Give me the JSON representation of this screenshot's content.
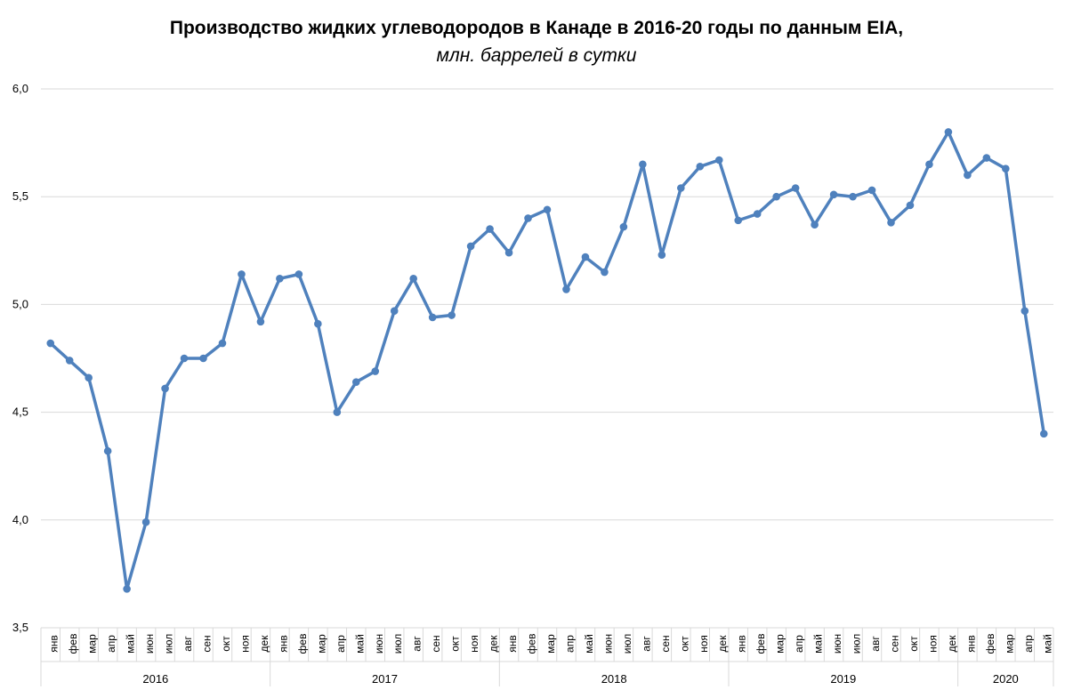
{
  "chart_data": {
    "type": "line",
    "title": "Производство жидких углеводородов в Канаде в 2016-20 годы по данным EIA,",
    "subtitle": "млн. баррелей в сутки",
    "xlabel": "",
    "ylabel": "",
    "ylim": [
      3.5,
      6.0
    ],
    "yticks": [
      "3,5",
      "4,0",
      "4,5",
      "5,0",
      "5,5",
      "6,0"
    ],
    "grid": true,
    "legend": "none",
    "color": "#4f81bd",
    "years": [
      {
        "label": "2016",
        "months": [
          "янв",
          "фев",
          "мар",
          "апр",
          "май",
          "июн",
          "июл",
          "авг",
          "сен",
          "окт",
          "ноя",
          "дек"
        ]
      },
      {
        "label": "2017",
        "months": [
          "янв",
          "фев",
          "мар",
          "апр",
          "май",
          "июн",
          "июл",
          "авг",
          "сен",
          "окт",
          "ноя",
          "дек"
        ]
      },
      {
        "label": "2018",
        "months": [
          "янв",
          "фев",
          "мар",
          "апр",
          "май",
          "июн",
          "июл",
          "авг",
          "сен",
          "окт",
          "ноя",
          "дек"
        ]
      },
      {
        "label": "2019",
        "months": [
          "янв",
          "фев",
          "мар",
          "апр",
          "май",
          "июн",
          "июл",
          "авг",
          "сен",
          "окт",
          "ноя",
          "дек"
        ]
      },
      {
        "label": "2020",
        "months": [
          "янв",
          "фев",
          "мар",
          "апр",
          "май"
        ]
      }
    ],
    "values": [
      4.82,
      4.74,
      4.66,
      4.32,
      3.68,
      3.99,
      4.61,
      4.75,
      4.75,
      4.82,
      5.14,
      4.92,
      5.12,
      5.14,
      4.91,
      4.5,
      4.64,
      4.69,
      4.97,
      5.12,
      4.94,
      4.95,
      5.27,
      5.35,
      5.24,
      5.4,
      5.44,
      5.07,
      5.22,
      5.15,
      5.36,
      5.65,
      5.23,
      5.54,
      5.64,
      5.67,
      5.39,
      5.42,
      5.5,
      5.54,
      5.37,
      5.51,
      5.5,
      5.53,
      5.38,
      5.46,
      5.65,
      5.8,
      5.6,
      5.68,
      5.63,
      4.97,
      4.4
    ]
  }
}
